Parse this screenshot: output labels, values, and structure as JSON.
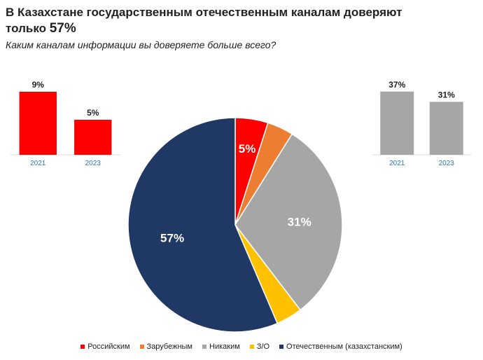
{
  "header": {
    "title_line1": "В Казахстане государственным отечественным каналам доверяют",
    "title_line2_prefix": "только ",
    "title_line2_value": "57%",
    "subtitle": "Каким каналам информации вы доверяете больше всего?"
  },
  "chart_data": [
    {
      "type": "bar",
      "categories": [
        "2021",
        "2023"
      ],
      "values": [
        9,
        5
      ],
      "value_labels": [
        "9%",
        "5%"
      ],
      "color": "#ff0000",
      "ylim": [
        0,
        10
      ]
    },
    {
      "type": "pie",
      "labels": [
        "Российским",
        "Зарубежным",
        "Никаким",
        "З/О",
        "Отечественным (казахстанским)"
      ],
      "values": [
        5,
        4,
        31,
        4,
        57
      ],
      "value_labels": [
        "5%",
        "",
        "31%",
        "",
        "57%"
      ],
      "colors": [
        "#ff0000",
        "#ed7d31",
        "#a6a6a6",
        "#ffc000",
        "#1f3864"
      ],
      "legend": "bottom"
    },
    {
      "type": "bar",
      "categories": [
        "2021",
        "2023"
      ],
      "values": [
        37,
        31
      ],
      "value_labels": [
        "37%",
        "31%"
      ],
      "color": "#a6a6a6",
      "ylim": [
        0,
        41
      ]
    }
  ]
}
